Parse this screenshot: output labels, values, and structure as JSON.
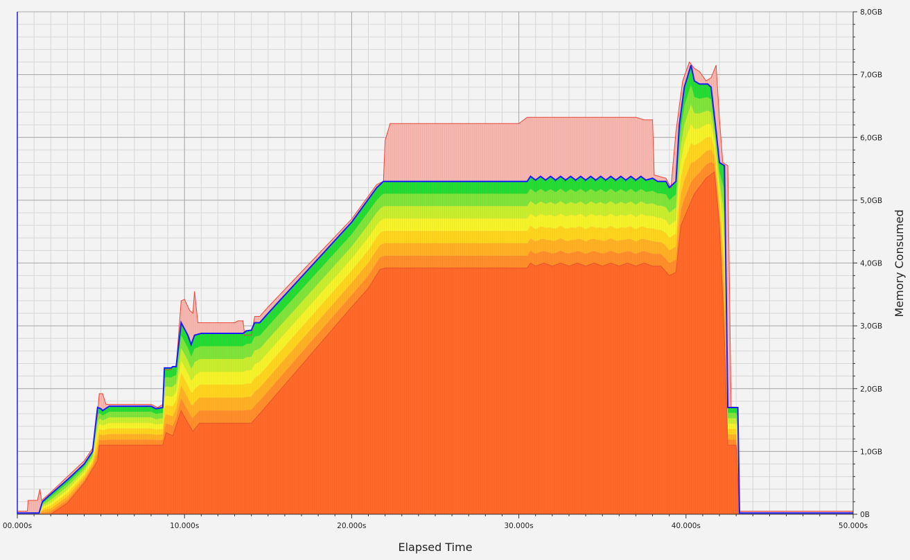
{
  "chart_data": {
    "type": "area",
    "title": "",
    "xlabel": "Elapsed Time",
    "ylabel": "Memory Consumed",
    "xlim": [
      0,
      50
    ],
    "ylim": [
      0,
      8
    ],
    "x_unit": "s",
    "y_unit": "GB",
    "x_ticks": [
      0,
      10,
      20,
      30,
      40,
      50
    ],
    "x_tick_labels": [
      "00.000s",
      "10.000s",
      "20.000s",
      "30.000s",
      "40.000s",
      "50.000s"
    ],
    "y_ticks": [
      0,
      1,
      2,
      3,
      4,
      5,
      6,
      7,
      8
    ],
    "y_tick_labels": [
      "0B",
      "1,0GB",
      "2,0GB",
      "3,0GB",
      "4,0GB",
      "5,0GB",
      "6,0GB",
      "7,0GB",
      "8,0GB"
    ],
    "y_axis_position": "right",
    "grid": true,
    "colors": {
      "background": "#f3f3f3",
      "peak_fill": "#f5b8b0",
      "peak_line": "#e8473a",
      "used_line": "#1a1aff",
      "band_ramp": [
        "#ff6a2a",
        "#ff8f2a",
        "#ffb224",
        "#ffd61e",
        "#f5f52a",
        "#c8f02e",
        "#7ee63a",
        "#22dd33"
      ]
    },
    "series": [
      {
        "role": "peak",
        "points": [
          [
            0,
            0.05
          ],
          [
            0.6,
            0.05
          ],
          [
            0.6,
            0.22
          ],
          [
            1.2,
            0.22
          ],
          [
            1.35,
            0.4
          ],
          [
            1.45,
            0.22
          ],
          [
            2,
            0.35
          ],
          [
            3,
            0.6
          ],
          [
            4,
            0.85
          ],
          [
            4.5,
            1.05
          ],
          [
            4.8,
            1.6
          ],
          [
            4.9,
            1.92
          ],
          [
            5.1,
            1.92
          ],
          [
            5.3,
            1.75
          ],
          [
            5.5,
            1.75
          ],
          [
            8,
            1.75
          ],
          [
            8.4,
            1.7
          ],
          [
            8.7,
            1.75
          ],
          [
            8.8,
            2.3
          ],
          [
            9.2,
            2.3
          ],
          [
            9.3,
            2.35
          ],
          [
            9.5,
            2.35
          ],
          [
            9.8,
            3.4
          ],
          [
            10,
            3.42
          ],
          [
            10.3,
            3.25
          ],
          [
            10.5,
            3.2
          ],
          [
            10.6,
            3.55
          ],
          [
            10.8,
            3.05
          ],
          [
            11,
            3.05
          ],
          [
            13,
            3.05
          ],
          [
            13.2,
            3.08
          ],
          [
            13.5,
            3.08
          ],
          [
            13.6,
            2.85
          ],
          [
            14,
            2.85
          ],
          [
            14.2,
            3.15
          ],
          [
            14.5,
            3.15
          ],
          [
            15,
            3.3
          ],
          [
            20,
            4.7
          ],
          [
            21.5,
            5.25
          ],
          [
            21.9,
            5.3
          ],
          [
            22,
            5.95
          ],
          [
            22.3,
            6.22
          ],
          [
            30,
            6.22
          ],
          [
            30.5,
            6.32
          ],
          [
            37,
            6.32
          ],
          [
            37.5,
            6.28
          ],
          [
            38,
            6.28
          ],
          [
            38.1,
            5.4
          ],
          [
            38.8,
            5.35
          ],
          [
            39.1,
            5.2
          ],
          [
            39.4,
            6.1
          ],
          [
            39.8,
            6.9
          ],
          [
            40.2,
            7.2
          ],
          [
            40.5,
            7.1
          ],
          [
            40.8,
            7.05
          ],
          [
            41.2,
            6.9
          ],
          [
            41.5,
            6.95
          ],
          [
            41.8,
            7.15
          ],
          [
            42,
            6.3
          ],
          [
            42.2,
            5.6
          ],
          [
            42.5,
            5.55
          ],
          [
            42.7,
            1.7
          ],
          [
            43.1,
            1.7
          ],
          [
            43.2,
            0.05
          ],
          [
            50,
            0.05
          ]
        ]
      },
      {
        "role": "total",
        "points": [
          [
            0,
            0.02
          ],
          [
            1.3,
            0.02
          ],
          [
            1.5,
            0.2
          ],
          [
            2,
            0.32
          ],
          [
            3,
            0.55
          ],
          [
            4,
            0.8
          ],
          [
            4.5,
            1.0
          ],
          [
            4.8,
            1.7
          ],
          [
            5,
            1.68
          ],
          [
            5.1,
            1.65
          ],
          [
            5.5,
            1.72
          ],
          [
            8,
            1.72
          ],
          [
            8.3,
            1.68
          ],
          [
            8.7,
            1.7
          ],
          [
            8.8,
            2.33
          ],
          [
            9.2,
            2.33
          ],
          [
            9.3,
            2.35
          ],
          [
            9.5,
            2.35
          ],
          [
            9.8,
            3.05
          ],
          [
            10.2,
            2.85
          ],
          [
            10.4,
            2.7
          ],
          [
            10.6,
            2.85
          ],
          [
            11,
            2.88
          ],
          [
            13.5,
            2.88
          ],
          [
            13.7,
            2.92
          ],
          [
            14,
            2.93
          ],
          [
            14.2,
            3.05
          ],
          [
            14.5,
            3.05
          ],
          [
            15,
            3.2
          ],
          [
            20,
            4.65
          ],
          [
            21.5,
            5.2
          ],
          [
            21.9,
            5.3
          ],
          [
            30.5,
            5.3
          ],
          [
            30.7,
            5.38
          ],
          [
            31,
            5.32
          ],
          [
            31.3,
            5.38
          ],
          [
            31.6,
            5.32
          ],
          [
            31.9,
            5.38
          ],
          [
            32.2,
            5.32
          ],
          [
            32.5,
            5.38
          ],
          [
            32.8,
            5.32
          ],
          [
            33.1,
            5.38
          ],
          [
            33.4,
            5.32
          ],
          [
            33.7,
            5.38
          ],
          [
            34,
            5.32
          ],
          [
            34.3,
            5.38
          ],
          [
            34.6,
            5.32
          ],
          [
            34.9,
            5.38
          ],
          [
            35.2,
            5.32
          ],
          [
            35.5,
            5.38
          ],
          [
            35.8,
            5.32
          ],
          [
            36.1,
            5.38
          ],
          [
            36.4,
            5.32
          ],
          [
            36.7,
            5.38
          ],
          [
            37,
            5.32
          ],
          [
            37.3,
            5.38
          ],
          [
            37.6,
            5.32
          ],
          [
            38,
            5.35
          ],
          [
            38.3,
            5.3
          ],
          [
            38.8,
            5.3
          ],
          [
            39,
            5.2
          ],
          [
            39.4,
            5.3
          ],
          [
            39.6,
            6.2
          ],
          [
            39.9,
            6.8
          ],
          [
            40.3,
            7.15
          ],
          [
            40.5,
            6.9
          ],
          [
            40.8,
            6.85
          ],
          [
            41.3,
            6.85
          ],
          [
            41.5,
            6.8
          ],
          [
            41.8,
            6.1
          ],
          [
            42,
            5.6
          ],
          [
            42.3,
            5.55
          ],
          [
            42.5,
            1.7
          ],
          [
            43.1,
            1.7
          ],
          [
            43.2,
            0.02
          ],
          [
            50,
            0.02
          ]
        ]
      },
      {
        "role": "base",
        "points": [
          [
            0,
            0
          ],
          [
            2,
            0
          ],
          [
            3,
            0.18
          ],
          [
            4,
            0.5
          ],
          [
            4.8,
            0.85
          ],
          [
            4.9,
            1.1
          ],
          [
            5.5,
            1.1
          ],
          [
            8.7,
            1.1
          ],
          [
            8.9,
            1.3
          ],
          [
            9.3,
            1.25
          ],
          [
            9.8,
            1.65
          ],
          [
            10.1,
            1.5
          ],
          [
            10.5,
            1.32
          ],
          [
            10.9,
            1.45
          ],
          [
            14,
            1.45
          ],
          [
            14.5,
            1.6
          ],
          [
            20,
            3.3
          ],
          [
            21,
            3.6
          ],
          [
            21.7,
            3.9
          ],
          [
            22,
            3.92
          ],
          [
            30.5,
            3.92
          ],
          [
            30.7,
            4.0
          ],
          [
            31,
            3.95
          ],
          [
            31.5,
            4.0
          ],
          [
            32,
            3.95
          ],
          [
            32.5,
            4.0
          ],
          [
            33,
            3.95
          ],
          [
            33.5,
            4.0
          ],
          [
            34,
            3.95
          ],
          [
            34.5,
            4.0
          ],
          [
            35,
            3.95
          ],
          [
            35.5,
            4.0
          ],
          [
            36,
            3.95
          ],
          [
            36.5,
            4.0
          ],
          [
            37,
            3.95
          ],
          [
            37.5,
            4.0
          ],
          [
            38,
            3.95
          ],
          [
            38.5,
            3.95
          ],
          [
            39,
            3.8
          ],
          [
            39.4,
            3.85
          ],
          [
            39.7,
            4.6
          ],
          [
            40.5,
            5.1
          ],
          [
            41.2,
            5.35
          ],
          [
            41.7,
            5.45
          ],
          [
            42,
            4.6
          ],
          [
            42.3,
            2.8
          ],
          [
            42.5,
            1.1
          ],
          [
            43,
            1.1
          ],
          [
            43.2,
            0
          ],
          [
            50,
            0
          ]
        ]
      }
    ]
  }
}
